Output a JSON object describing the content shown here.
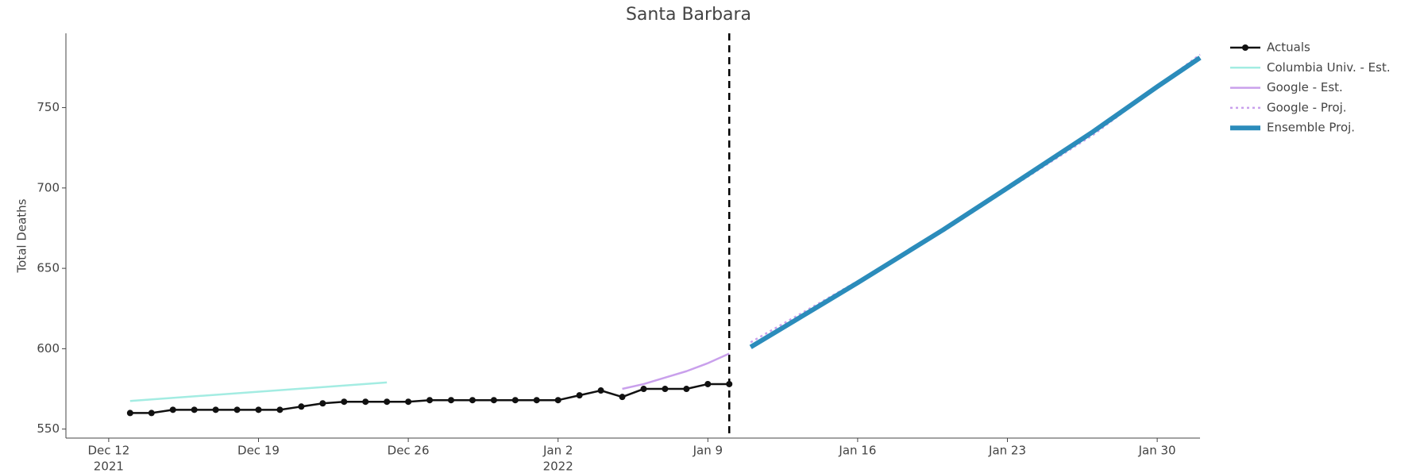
{
  "chart_data": {
    "type": "line",
    "title": "Santa Barbara",
    "y_label": "Total Deaths",
    "xlim": [
      "2021-12-10",
      "2022-02-01"
    ],
    "ylim": [
      544.4,
      796.2
    ],
    "yticks": [
      550,
      600,
      650,
      700,
      750
    ],
    "xticks": [
      {
        "value": "2021-12-12",
        "label": "Dec 12",
        "year": "2021"
      },
      {
        "value": "2021-12-19",
        "label": "Dec 19"
      },
      {
        "value": "2021-12-26",
        "label": "Dec 26"
      },
      {
        "value": "2022-01-02",
        "label": "Jan 2",
        "year": "2022"
      },
      {
        "value": "2022-01-09",
        "label": "Jan 9"
      },
      {
        "value": "2022-01-16",
        "label": "Jan 16"
      },
      {
        "value": "2022-01-23",
        "label": "Jan 23"
      },
      {
        "value": "2022-01-30",
        "label": "Jan 30"
      }
    ],
    "vline": "2022-01-10",
    "series": [
      {
        "name": "Actuals",
        "color": "#111111",
        "width": 2.5,
        "markers": true,
        "x": [
          "2021-12-13",
          "2021-12-14",
          "2021-12-15",
          "2021-12-16",
          "2021-12-17",
          "2021-12-18",
          "2021-12-19",
          "2021-12-20",
          "2021-12-21",
          "2021-12-22",
          "2021-12-23",
          "2021-12-24",
          "2021-12-25",
          "2021-12-26",
          "2021-12-27",
          "2021-12-28",
          "2021-12-29",
          "2021-12-30",
          "2021-12-31",
          "2022-01-01",
          "2022-01-02",
          "2022-01-03",
          "2022-01-04",
          "2022-01-05",
          "2022-01-06",
          "2022-01-07",
          "2022-01-08",
          "2022-01-09",
          "2022-01-10"
        ],
        "values": [
          560,
          560,
          562,
          562,
          562,
          562,
          562,
          562,
          564,
          566,
          567,
          567,
          567,
          567,
          568,
          568,
          568,
          568,
          568,
          568,
          568,
          571,
          574,
          570,
          575,
          575,
          575,
          578,
          578
        ]
      },
      {
        "name": "Columbia Univ. - Est.",
        "color": "#a3ece2",
        "width": 2.5,
        "x": [
          "2021-12-13",
          "2021-12-25"
        ],
        "values": [
          567.5,
          579
        ]
      },
      {
        "name": "Google - Est.",
        "color": "#c9a0ec",
        "width": 2.5,
        "x": [
          "2022-01-05",
          "2022-01-06",
          "2022-01-07",
          "2022-01-08",
          "2022-01-09",
          "2022-01-10"
        ],
        "values": [
          575,
          578,
          582,
          586,
          591,
          597
        ]
      },
      {
        "name": "Google - Proj.",
        "color": "#c9a0ec",
        "width": 2.5,
        "dash": true,
        "x": [
          "2022-01-11",
          "2022-01-16",
          "2022-01-20",
          "2022-01-23",
          "2022-01-27",
          "2022-02-01"
        ],
        "values": [
          604,
          642,
          673,
          699,
          733,
          783
        ]
      },
      {
        "name": "Ensemble Proj.",
        "color": "#2b8cbb",
        "width": 6,
        "x": [
          "2022-01-11",
          "2022-01-13",
          "2022-01-16",
          "2022-01-20",
          "2022-01-23",
          "2022-01-27",
          "2022-01-30",
          "2022-02-01"
        ],
        "values": [
          601,
          617,
          641,
          674,
          700,
          735,
          763,
          781
        ]
      }
    ]
  }
}
